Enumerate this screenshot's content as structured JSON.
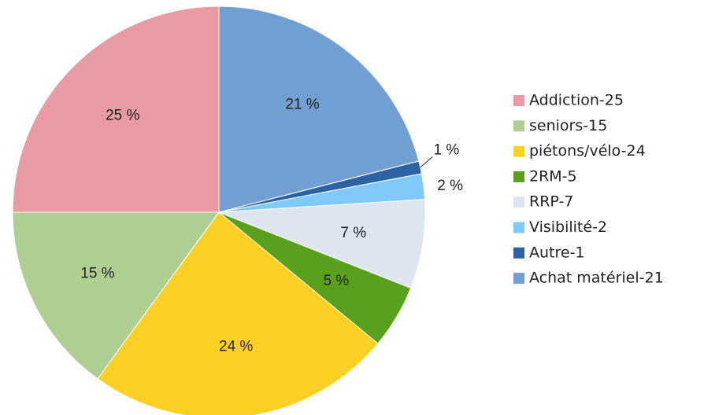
{
  "chart_data": {
    "type": "pie",
    "categories": [
      "Addiction-25",
      "seniors-15",
      "piétons/vélo-24",
      "2RM-5",
      "RRP-7",
      "Visibilité-2",
      "Autre-1",
      "Achat matériel-21"
    ],
    "values": [
      25,
      15,
      24,
      5,
      7,
      2,
      1,
      21
    ],
    "value_labels": [
      "25 %",
      "15 %",
      "24 %",
      "5 %",
      "7 %",
      "2 %",
      "1 %",
      "21 %"
    ],
    "colors": [
      "#ea9aa2",
      "#aecf91",
      "#fdd023",
      "#59a01d",
      "#dde5ef",
      "#7fc9fb",
      "#2e63a3",
      "#729fd2"
    ],
    "legend": "right"
  }
}
